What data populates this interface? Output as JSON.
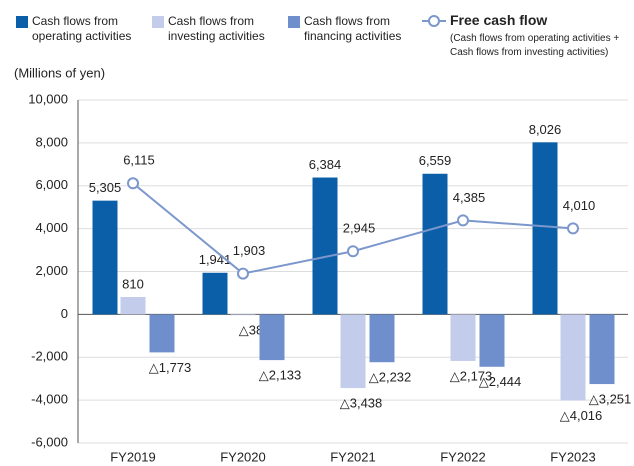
{
  "chart_data": {
    "type": "bar",
    "y_label": "(Millions of yen)",
    "categories": [
      "FY2019",
      "FY2020",
      "FY2021",
      "FY2022",
      "FY2023"
    ],
    "series": [
      {
        "name": "Cash flows from operating activities",
        "color": "#0b5fa8",
        "values": [
          5305,
          1941,
          6384,
          6559,
          8026
        ],
        "value_labels": [
          "5,305",
          "1,941",
          "6,384",
          "6,559",
          "8,026"
        ]
      },
      {
        "name": "Cash flows from investing activities",
        "color": "#c3cdeb",
        "values": [
          810,
          -38,
          -3438,
          -2173,
          -4016
        ],
        "value_labels": [
          "810",
          "△38",
          "△3,438",
          "△2,173",
          "△4,016"
        ]
      },
      {
        "name": "Cash flows from financing activities",
        "color": "#6e8fcb",
        "values": [
          -1773,
          -2133,
          -2232,
          -2444,
          -3251
        ],
        "value_labels": [
          "△1,773",
          "△2,133",
          "△2,232",
          "△2,444",
          "△3,251"
        ]
      },
      {
        "name": "Free cash flow",
        "type": "line",
        "color": "#7b97cc",
        "values": [
          6115,
          1903,
          2945,
          4385,
          4010
        ],
        "value_labels": [
          "6,115",
          "1,903",
          "2,945",
          "4,385",
          "4,010"
        ],
        "note": "(Cash flows from operating activities + Cash flows from investing activities)"
      }
    ],
    "ylim": [
      -6000,
      10000
    ],
    "yticks": [
      {
        "value": -6000,
        "label": "-6,000"
      },
      {
        "value": -4000,
        "label": "-4,000"
      },
      {
        "value": -2000,
        "label": "-2,000"
      },
      0,
      {
        "value": 2000,
        "label": "2,000"
      },
      {
        "value": 4000,
        "label": "4,000"
      },
      {
        "value": 6000,
        "label": "6,000"
      },
      {
        "value": 8000,
        "label": "8,000"
      },
      {
        "value": 10000,
        "label": "10,000"
      }
    ],
    "grid": true
  }
}
